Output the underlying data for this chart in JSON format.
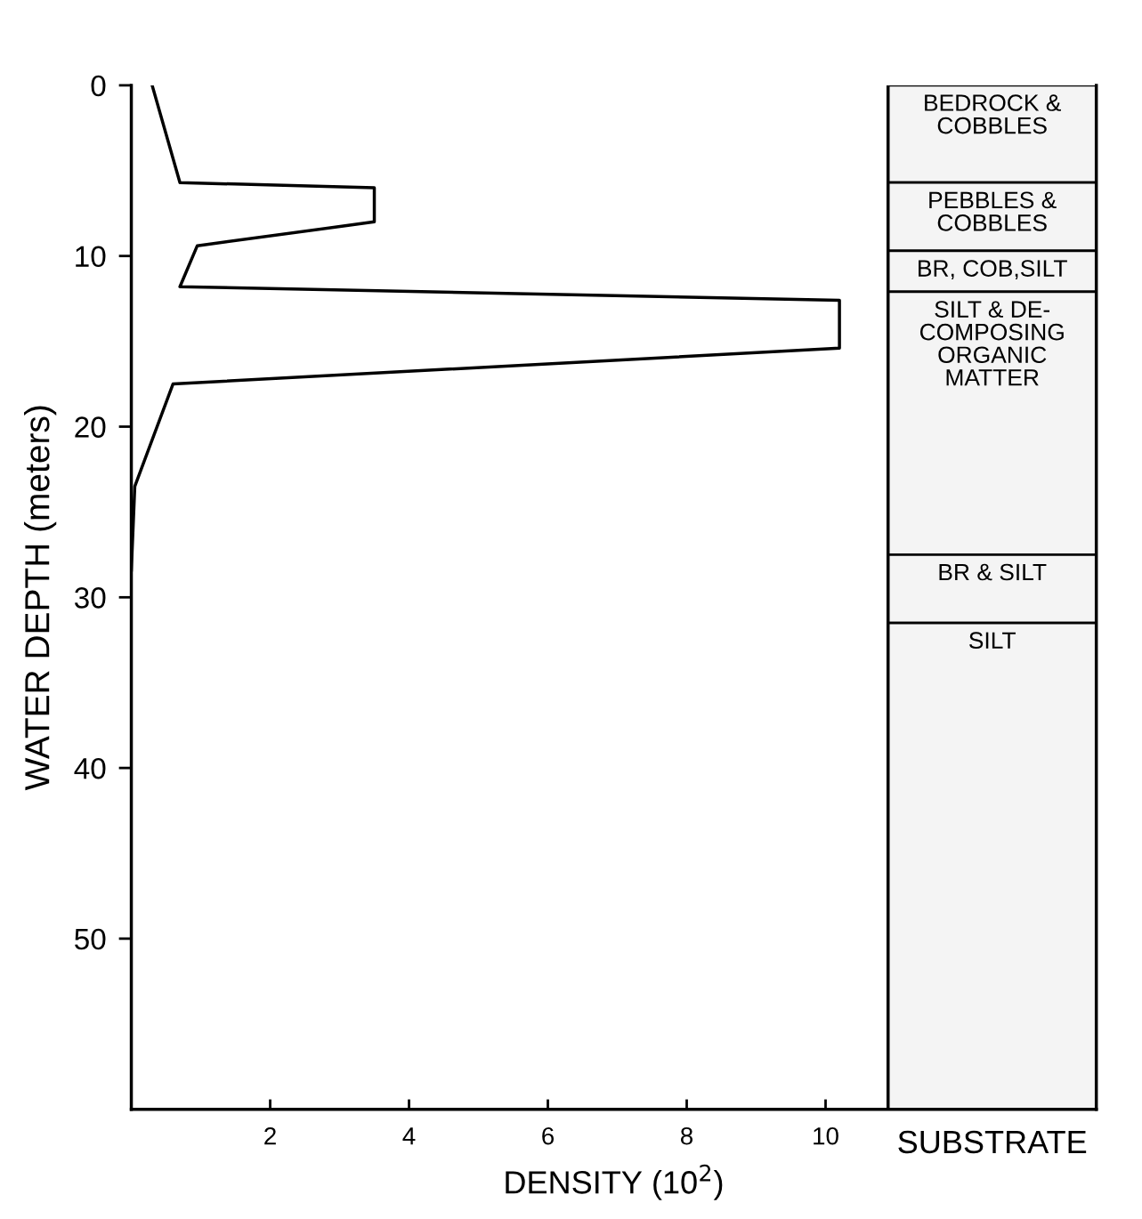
{
  "chart_data": {
    "type": "line",
    "xlabel": "DENSITY (10$^{2}$)",
    "ylabel": "WATER DEPTH (meters)",
    "x": [
      0.3,
      0.7,
      3.5,
      3.5,
      0.95,
      0.7,
      10.2,
      10.2,
      0.6,
      0.05,
      0.0
    ],
    "series": [
      {
        "color": "#000000",
        "values": [
          0,
          5.7,
          6.0,
          8.0,
          9.4,
          11.8,
          12.6,
          15.4,
          17.5,
          23.5,
          28.4
        ]
      }
    ],
    "xlim": [
      0,
      13.9
    ],
    "ref_lines": [
      {
        "axis": "x",
        "value": 10.9,
        "color": "#000000",
        "line_style": "solid"
      }
    ],
    "xticks": [
      2,
      4,
      6,
      8,
      10
    ],
    "ylim": [
      60,
      0
    ],
    "yticks": [
      0,
      10,
      20,
      30,
      40,
      50
    ],
    "grid": false,
    "legend": false,
    "marker": "none",
    "line_style": "solid",
    "bands": [
      {
        "axis": "y",
        "from": 0,
        "to": 5.7,
        "label": "BEDROCK &\nCOBBLES"
      },
      {
        "axis": "y",
        "from": 5.7,
        "to": 9.7,
        "label": "PEBBLES &\nCOBBLES"
      },
      {
        "axis": "y",
        "from": 9.7,
        "to": 12.1,
        "label": "BR, COB,SILT"
      },
      {
        "axis": "y",
        "from": 12.1,
        "to": 27.5,
        "label": "SILT & DE-\nCOMPOSING\nORGANIC\nMATTER"
      },
      {
        "axis": "y",
        "from": 27.5,
        "to": 31.5,
        "label": "BR & SILT"
      },
      {
        "axis": "y",
        "from": 31.5,
        "to": 60,
        "label": "SILT"
      }
    ],
    "annotations": [
      "SUBSTRATE"
    ]
  }
}
